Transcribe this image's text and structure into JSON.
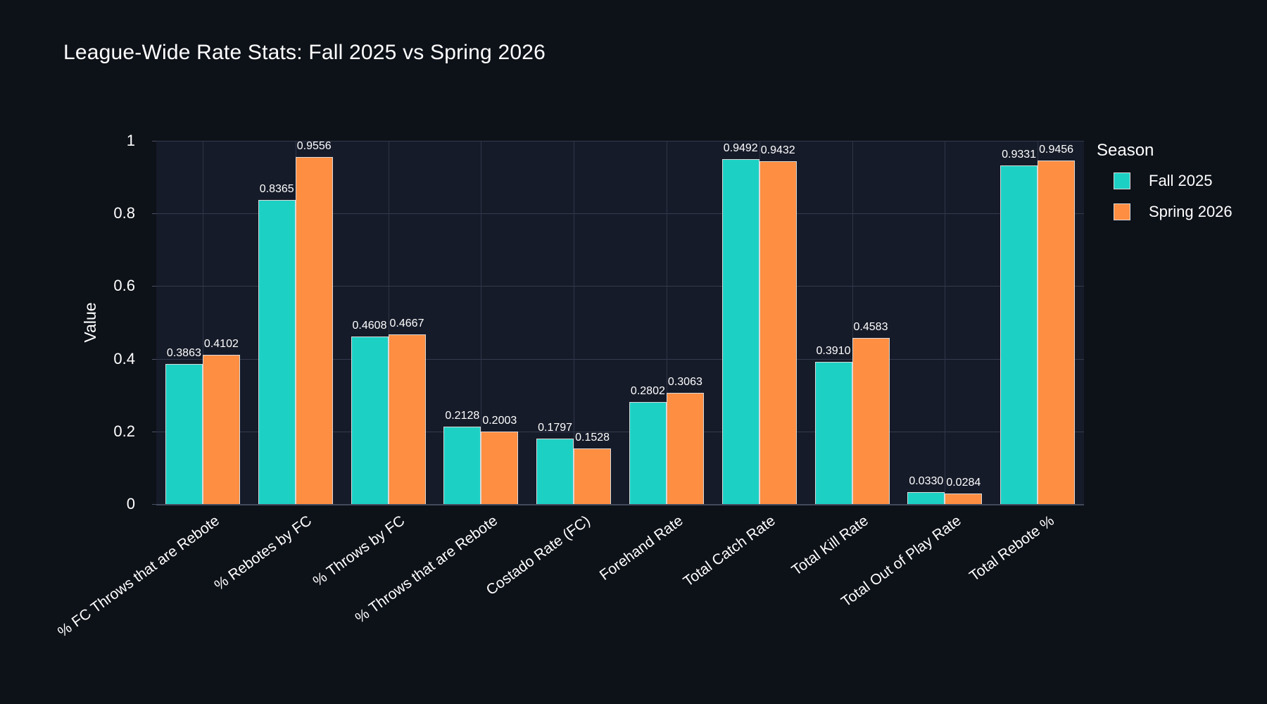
{
  "chart_data": {
    "type": "bar",
    "title": "League-Wide Rate Stats: Fall 2025 vs Spring 2026",
    "xlabel": "",
    "ylabel": "Value",
    "ylim": [
      0,
      1
    ],
    "grid": true,
    "legend_position": "right",
    "legend_title": "Season",
    "ytick_values": [
      0,
      0.2,
      0.4,
      0.6,
      0.8,
      1
    ],
    "ytick_labels": [
      "0",
      "0.2",
      "0.4",
      "0.6",
      "0.8",
      "1"
    ],
    "categories": [
      "% FC Throws that are Rebote",
      "% Rebotes by FC",
      "% Throws by FC",
      "% Throws that are Rebote",
      "Costado Rate (FC)",
      "Forehand Rate",
      "Total Catch Rate",
      "Total Kill Rate",
      "Total Out of Play Rate",
      "Total Rebote %"
    ],
    "series": [
      {
        "name": "Fall 2025",
        "color": "#1dd0c4",
        "values": [
          0.3863,
          0.8365,
          0.4608,
          0.2128,
          0.1797,
          0.2802,
          0.9492,
          0.391,
          0.033,
          0.9331
        ],
        "labels": [
          "0.3863",
          "0.8365",
          "0.4608",
          "0.2128",
          "0.1797",
          "0.2802",
          "0.9492",
          "0.3910",
          "0.0330",
          "0.9331"
        ]
      },
      {
        "name": "Spring 2026",
        "color": "#fd8e42",
        "values": [
          0.4102,
          0.9556,
          0.4667,
          0.2003,
          0.1528,
          0.3063,
          0.9432,
          0.4583,
          0.0284,
          0.9456
        ],
        "labels": [
          "0.4102",
          "0.9556",
          "0.4667",
          "0.2003",
          "0.1528",
          "0.3063",
          "0.9432",
          "0.4583",
          "0.0284",
          "0.9456"
        ]
      }
    ],
    "colors": {
      "page_background": "#0d1118",
      "plot_background": "#161b29",
      "gridline": "#343b4d",
      "text": "#ffffff",
      "bar_border": "#d9d9d9"
    }
  }
}
